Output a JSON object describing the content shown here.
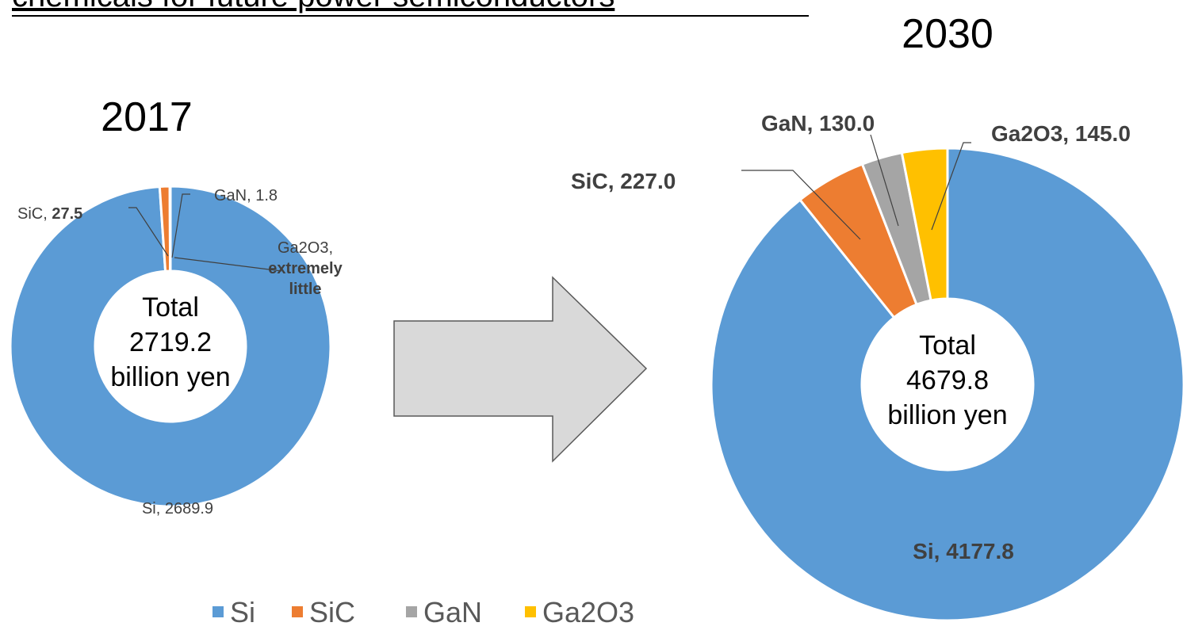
{
  "title": "chemicals for future power semiconductors",
  "chart_data": [
    {
      "type": "pie",
      "title": "2017",
      "categories": [
        "Si",
        "SiC",
        "GaN",
        "Ga2O3"
      ],
      "values": [
        2689.9,
        27.5,
        1.8,
        null
      ],
      "value_labels": [
        "2689.9",
        "27.5",
        "1.8",
        "extremely little"
      ],
      "colors": [
        "#5b9bd5",
        "#ed7d31",
        "#a5a5a5",
        "#ffc000"
      ],
      "center_label": "Total",
      "total": 2719.2,
      "total_unit": "billion yen",
      "legend": "bottom"
    },
    {
      "type": "pie",
      "title": "2030",
      "categories": [
        "Si",
        "SiC",
        "GaN",
        "Ga2O3"
      ],
      "values": [
        4177.8,
        227.0,
        130.0,
        145.0
      ],
      "value_labels": [
        "4177.8",
        "227.0",
        "130.0",
        "145.0"
      ],
      "colors": [
        "#5b9bd5",
        "#ed7d31",
        "#a5a5a5",
        "#ffc000"
      ],
      "center_label": "Total",
      "total": 4679.8,
      "total_unit": "billion yen"
    }
  ]
}
